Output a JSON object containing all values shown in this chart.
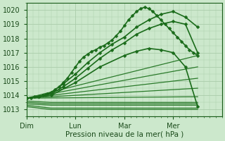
{
  "background_color": "#cce8cc",
  "plot_bg_color": "#cce8cc",
  "grid_color": "#aaccaa",
  "xlabel": "Pression niveau de la mer( hPa )",
  "ylim": [
    1012.5,
    1020.5
  ],
  "xlim": [
    0,
    96
  ],
  "xtick_positions": [
    0,
    24,
    48,
    72
  ],
  "xtick_labels": [
    "Dim",
    "Lun",
    "Mar",
    "Mer"
  ],
  "ytick_positions": [
    1013,
    1014,
    1015,
    1016,
    1017,
    1018,
    1019,
    1020
  ],
  "series_marker": [
    {
      "x": [
        0,
        2,
        4,
        6,
        8,
        10,
        12,
        14,
        16,
        18,
        20,
        22,
        24,
        26,
        28,
        30,
        32,
        34,
        36,
        38,
        40,
        42,
        44,
        46,
        48,
        50,
        52,
        54,
        56,
        58,
        60,
        62,
        64,
        66,
        68,
        70,
        72,
        74,
        76,
        78,
        80,
        82,
        84
      ],
      "y": [
        1013.8,
        1013.8,
        1013.9,
        1013.9,
        1014.0,
        1014.1,
        1014.2,
        1014.4,
        1014.6,
        1014.9,
        1015.2,
        1015.6,
        1016.0,
        1016.4,
        1016.7,
        1016.9,
        1017.1,
        1017.2,
        1017.4,
        1017.5,
        1017.7,
        1017.9,
        1018.2,
        1018.5,
        1018.9,
        1019.3,
        1019.6,
        1019.9,
        1020.1,
        1020.2,
        1020.1,
        1019.9,
        1019.6,
        1019.3,
        1019.0,
        1018.7,
        1018.4,
        1018.1,
        1017.8,
        1017.5,
        1017.2,
        1017.0,
        1016.8
      ],
      "color": "#1a6b1a",
      "lw": 1.2,
      "ms": 2.5
    },
    {
      "x": [
        0,
        6,
        12,
        18,
        24,
        30,
        36,
        42,
        48,
        54,
        60,
        66,
        72,
        78,
        84
      ],
      "y": [
        1013.8,
        1013.9,
        1014.2,
        1014.8,
        1015.5,
        1016.3,
        1017.0,
        1017.6,
        1018.1,
        1018.8,
        1019.3,
        1019.7,
        1019.9,
        1019.5,
        1018.8
      ],
      "color": "#1a6b1a",
      "lw": 1.2,
      "ms": 2.5
    },
    {
      "x": [
        0,
        6,
        12,
        18,
        24,
        30,
        36,
        42,
        48,
        54,
        60,
        66,
        72,
        78,
        84
      ],
      "y": [
        1013.8,
        1013.9,
        1014.1,
        1014.6,
        1015.2,
        1015.9,
        1016.6,
        1017.2,
        1017.7,
        1018.3,
        1018.7,
        1019.0,
        1019.2,
        1019.0,
        1017.0
      ],
      "color": "#1a6b1a",
      "lw": 1.2,
      "ms": 2.5
    },
    {
      "x": [
        0,
        12,
        24,
        36,
        48,
        54,
        60,
        66,
        72,
        78,
        84
      ],
      "y": [
        1013.8,
        1014.0,
        1014.9,
        1016.0,
        1016.8,
        1017.1,
        1017.3,
        1017.2,
        1017.0,
        1016.0,
        1013.2
      ],
      "color": "#1a6b1a",
      "lw": 1.2,
      "ms": 2.5
    }
  ],
  "fan_lines": [
    {
      "x": [
        0,
        84
      ],
      "y": [
        1013.8,
        1016.8
      ],
      "lw": 0.9,
      "color": "#2a7a2a"
    },
    {
      "x": [
        0,
        84
      ],
      "y": [
        1013.8,
        1016.0
      ],
      "lw": 0.9,
      "color": "#2a7a2a"
    },
    {
      "x": [
        0,
        84
      ],
      "y": [
        1013.8,
        1015.2
      ],
      "lw": 0.9,
      "color": "#2a7a2a"
    },
    {
      "x": [
        0,
        84
      ],
      "y": [
        1013.8,
        1014.5
      ],
      "lw": 0.9,
      "color": "#2a7a2a"
    },
    {
      "x": [
        0,
        84
      ],
      "y": [
        1013.8,
        1013.9
      ],
      "lw": 0.9,
      "color": "#2a7a2a"
    }
  ],
  "flat_lines": [
    {
      "x": [
        0,
        12,
        84
      ],
      "y": [
        1013.6,
        1013.5,
        1013.5
      ],
      "lw": 0.9,
      "color": "#2a7a2a"
    },
    {
      "x": [
        0,
        12,
        84
      ],
      "y": [
        1013.5,
        1013.4,
        1013.4
      ],
      "lw": 0.9,
      "color": "#2a7a2a"
    },
    {
      "x": [
        0,
        12,
        84
      ],
      "y": [
        1013.4,
        1013.3,
        1013.3
      ],
      "lw": 0.9,
      "color": "#2a7a2a"
    },
    {
      "x": [
        0,
        12,
        84
      ],
      "y": [
        1013.3,
        1013.1,
        1013.1
      ],
      "lw": 0.9,
      "color": "#2a7a2a"
    },
    {
      "x": [
        0,
        12,
        84
      ],
      "y": [
        1013.2,
        1013.0,
        1013.0
      ],
      "lw": 0.9,
      "color": "#2a7a2a"
    }
  ]
}
